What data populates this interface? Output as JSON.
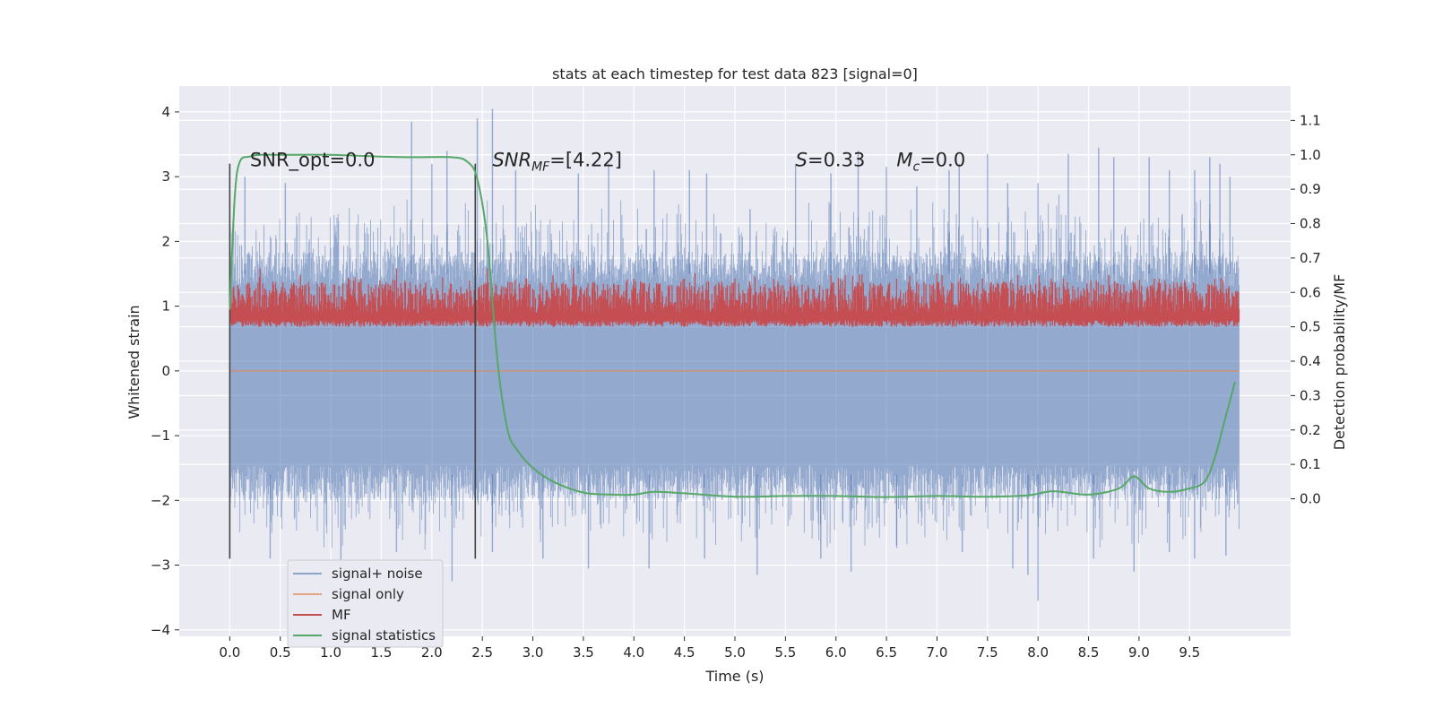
{
  "chart_data": {
    "type": "line",
    "title": "stats at each timestep for test data 823 [signal=0]",
    "xlabel": "Time (s)",
    "ylabel": "Whitened strain",
    "y2label": "Detection probability/MF",
    "xlim": [
      -0.5,
      10.5
    ],
    "ylim": [
      -4.1,
      4.4
    ],
    "y2lim": [
      -0.4,
      1.2
    ],
    "x_ticks": [
      0.0,
      0.5,
      1.0,
      1.5,
      2.0,
      2.5,
      3.0,
      3.5,
      4.0,
      4.5,
      5.0,
      5.5,
      6.0,
      6.5,
      7.0,
      7.5,
      8.0,
      8.5,
      9.0,
      9.5
    ],
    "x_tick_labels": [
      "0.0",
      "0.5",
      "1.0",
      "1.5",
      "2.0",
      "2.5",
      "3.0",
      "3.5",
      "4.0",
      "4.5",
      "5.0",
      "5.5",
      "6.0",
      "6.5",
      "7.0",
      "7.5",
      "8.0",
      "8.5",
      "9.0",
      "9.5"
    ],
    "y_ticks": [
      4,
      3,
      2,
      1,
      0,
      -1,
      -2,
      -3,
      -4
    ],
    "y_tick_labels": [
      "4",
      "3",
      "2",
      "1",
      "0",
      "−1",
      "−2",
      "−3",
      "−4"
    ],
    "y2_ticks": [
      1.1,
      1.0,
      0.9,
      0.8,
      0.7,
      0.6,
      0.5,
      0.4,
      0.3,
      0.2,
      0.1,
      0.0
    ],
    "y2_tick_labels": [
      "1.1",
      "1.0",
      "0.9",
      "0.8",
      "0.7",
      "0.6",
      "0.5",
      "0.4",
      "0.3",
      "0.2",
      "0.1",
      "0.0"
    ],
    "grid": true,
    "legend_position": "lower-left",
    "series": [
      {
        "name": "signal+ noise",
        "axis": "left",
        "color": "#4c72b0",
        "x_range": [
          0.0,
          9.99
        ],
        "envelope_upper_typical": 1.5,
        "envelope_lower_typical": -1.6,
        "peak_x": [
          0.15,
          0.55,
          1.8,
          2.0,
          2.15,
          2.45,
          2.6,
          2.83,
          3.45,
          3.75,
          4.2,
          4.55,
          4.72,
          5.15,
          5.6,
          5.95,
          6.22,
          6.5,
          6.8,
          7.12,
          7.22,
          7.5,
          7.7,
          8.0,
          8.3,
          8.6,
          8.75,
          9.1,
          9.3,
          9.55,
          9.7,
          9.8,
          9.9
        ],
        "peak_y": [
          3.0,
          2.9,
          3.85,
          3.2,
          3.4,
          3.9,
          4.05,
          3.1,
          3.05,
          3.2,
          3.1,
          3.1,
          3.05,
          2.5,
          3.2,
          3.05,
          3.4,
          3.15,
          2.85,
          3.1,
          3.2,
          3.35,
          2.9,
          2.9,
          3.35,
          3.45,
          3.3,
          3.3,
          3.1,
          3.1,
          3.3,
          3.2,
          3.0
        ],
        "trough_x": [
          0.4,
          1.1,
          1.65,
          2.2,
          2.6,
          3.1,
          3.55,
          4.15,
          4.7,
          5.22,
          5.85,
          6.15,
          6.6,
          7.25,
          7.75,
          7.9,
          8.0,
          8.55,
          8.95,
          9.3,
          9.55,
          9.86
        ],
        "trough_y": [
          -2.9,
          -3.1,
          -2.8,
          -3.25,
          -2.8,
          -2.9,
          -3.05,
          -3.05,
          -2.9,
          -3.15,
          -2.9,
          -3.1,
          -2.7,
          -2.8,
          -3.05,
          -3.15,
          -3.55,
          -2.9,
          -3.1,
          -2.8,
          -2.9,
          -2.85
        ]
      },
      {
        "name": "signal only",
        "axis": "left",
        "color": "#dd8452",
        "x": [
          0.0,
          9.99
        ],
        "y": [
          0.0,
          0.0
        ]
      },
      {
        "name": "MF",
        "axis": "right",
        "color": "#c44e52",
        "x_range": [
          0.0,
          9.99
        ],
        "baseline": 0.5,
        "typical_max": 0.63,
        "peak_x": [
          0.3,
          0.7,
          1.3,
          1.65,
          2.55,
          3.2,
          3.4,
          4.0,
          4.5,
          5.0,
          5.55,
          5.95,
          6.6,
          7.05,
          7.45,
          7.8,
          8.25,
          8.7,
          9.2,
          9.75
        ],
        "peak_y": [
          0.67,
          0.65,
          0.64,
          0.67,
          0.67,
          0.65,
          0.67,
          0.64,
          0.64,
          0.64,
          0.65,
          0.65,
          0.64,
          0.65,
          0.64,
          0.65,
          0.64,
          0.65,
          0.64,
          0.64
        ]
      },
      {
        "name": "signal statistics",
        "axis": "right",
        "color": "#55a868",
        "x": [
          0.0,
          0.05,
          0.1,
          0.2,
          0.3,
          0.5,
          1.0,
          1.5,
          1.8,
          2.2,
          2.35,
          2.45,
          2.55,
          2.65,
          2.75,
          2.85,
          3.0,
          3.2,
          3.5,
          3.8,
          4.0,
          4.2,
          4.5,
          5.0,
          5.5,
          6.0,
          6.5,
          7.0,
          7.5,
          7.9,
          8.15,
          8.5,
          8.8,
          8.95,
          9.1,
          9.3,
          9.5,
          9.65,
          9.75,
          9.85,
          9.95
        ],
        "y": [
          0.55,
          0.88,
          0.98,
          0.995,
          1.0,
          1.0,
          1.0,
          0.995,
          0.993,
          0.993,
          0.98,
          0.93,
          0.75,
          0.4,
          0.2,
          0.14,
          0.09,
          0.05,
          0.018,
          0.012,
          0.012,
          0.02,
          0.016,
          0.006,
          0.008,
          0.008,
          0.005,
          0.008,
          0.006,
          0.01,
          0.022,
          0.012,
          0.03,
          0.065,
          0.03,
          0.02,
          0.03,
          0.05,
          0.12,
          0.23,
          0.34
        ]
      }
    ],
    "vlines": [
      {
        "x": 0.0,
        "ymin": -2.9,
        "ymax": 3.2,
        "color": "#444444"
      },
      {
        "x": 2.43,
        "ymin": -2.9,
        "ymax": 3.2,
        "color": "#444444"
      }
    ],
    "annotations": [
      {
        "text": "SNR_opt=0.0",
        "x": 0.2,
        "y": 3.2
      },
      {
        "text": "SNR",
        "sub": "MF",
        "tail": "=[4.22]",
        "italic": true,
        "x": 2.6,
        "y": 3.2
      },
      {
        "text": "S",
        "tail": "=0.33",
        "italic": true,
        "x": 5.6,
        "y": 3.2
      },
      {
        "text": "M",
        "sub": "c",
        "tail": "=0.0",
        "italic": true,
        "x": 6.6,
        "y": 3.2
      }
    ]
  }
}
